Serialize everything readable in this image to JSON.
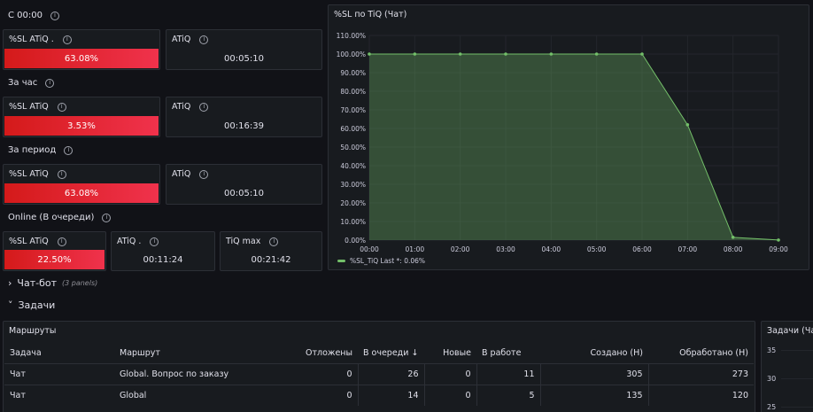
{
  "sections": {
    "s1": "С 00:00",
    "s2": "За час",
    "s3": "За период",
    "s4": "Online (В очереди)"
  },
  "stats": {
    "p1": {
      "label": "%SL ATiQ .",
      "value": "63.08%",
      "level": 0.6308
    },
    "p2": {
      "label": "ATiQ",
      "value": "00:05:10"
    },
    "p3": {
      "label": "%SL ATiQ",
      "value": "3.53%",
      "level": 0.0353
    },
    "p4": {
      "label": "ATiQ",
      "value": "00:16:39"
    },
    "p5": {
      "label": "%SL ATiQ",
      "value": "63.08%",
      "level": 0.6308
    },
    "p6": {
      "label": "ATiQ",
      "value": "00:05:10"
    },
    "p7": {
      "label": "%SL ATiQ",
      "value": "22.50%",
      "level": 0.225
    },
    "p8": {
      "label": "ATiQ .",
      "value": "00:11:24"
    },
    "p9": {
      "label": "TiQ max",
      "value": "00:21:42"
    }
  },
  "chart_panel": {
    "title": "%SL по TiQ (Чат)"
  },
  "chart_data": {
    "type": "area",
    "title": "%SL по TiQ (Чат)",
    "x": [
      "00:00",
      "01:00",
      "02:00",
      "03:00",
      "04:00",
      "05:00",
      "06:00",
      "07:00",
      "08:00",
      "09:00"
    ],
    "y_ticks": [
      "0.00%",
      "10.00%",
      "20.00%",
      "30.00%",
      "40.00%",
      "50.00%",
      "60.00%",
      "70.00%",
      "80.00%",
      "90.00%",
      "100.00%",
      "110.00%"
    ],
    "ylim": [
      0,
      110
    ],
    "series": [
      {
        "name": "%SL_TiQ",
        "values": [
          100,
          100,
          100,
          100,
          100,
          100,
          100,
          62,
          1.5,
          0.06
        ],
        "color": "#73bf69"
      }
    ],
    "legend": {
      "name": "%SL_TiQ",
      "stat": "Last *: 0.06%",
      "placement": "bottom-left"
    },
    "grid": true
  },
  "rows": {
    "chatbot": {
      "label": "Чат-бот",
      "count": "(3 panels)"
    },
    "tasks": {
      "label": "Задачи"
    }
  },
  "routes": {
    "title": "Маршруты",
    "headers": [
      "Задача",
      "Маршрут",
      "Отложены",
      "В очереди",
      "Новые",
      "В работе",
      "Создано (Н)",
      "Обработано (Н)"
    ],
    "sort_icon": "↓",
    "rows": [
      [
        "Чат",
        "Global. Вопрос по заказу",
        "0",
        "26",
        "0",
        "11",
        "305",
        "273"
      ],
      [
        "Чат",
        "Global",
        "0",
        "14",
        "0",
        "5",
        "135",
        "120"
      ]
    ]
  },
  "tasks_chart": {
    "title": "Задачи (Ча",
    "y_ticks": [
      "35",
      "30",
      "25"
    ]
  },
  "colors": {
    "accent_red": "#e02f44",
    "series_green": "#73bf69",
    "bg": "#111217",
    "panel": "#181b1f"
  }
}
